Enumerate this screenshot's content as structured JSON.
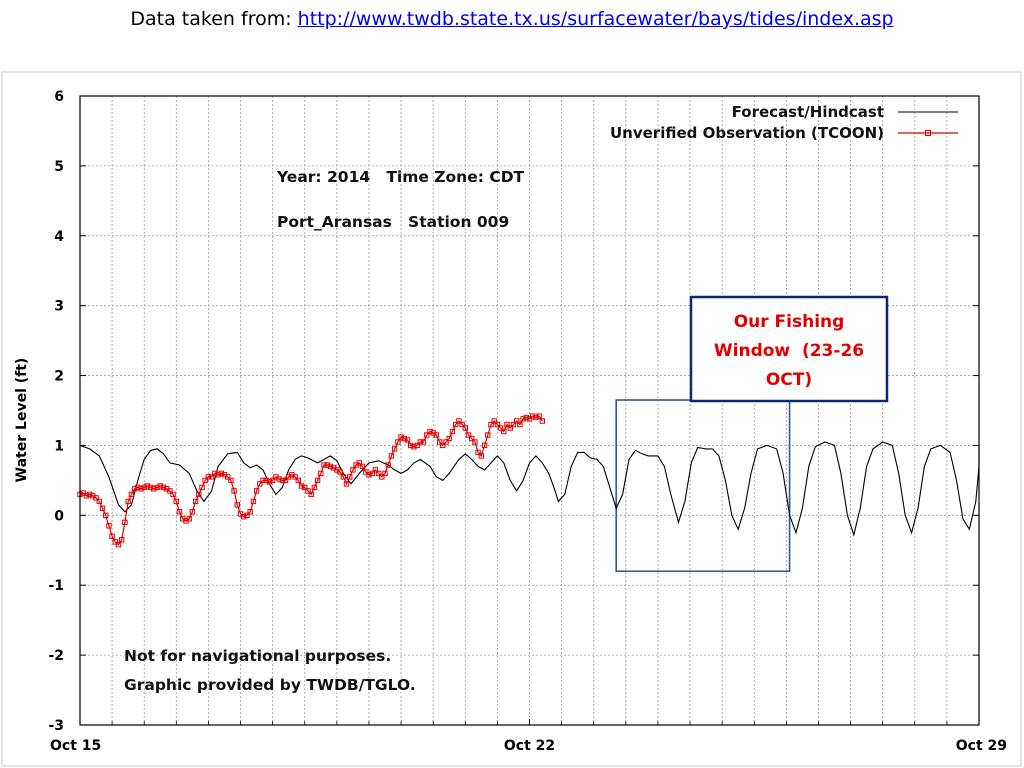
{
  "header": {
    "prefix": "Data taken from:",
    "link_text": "http://www.twdb.state.tx.us/surfacewater/bays/tides/index.asp"
  },
  "annotations": {
    "year_line": "Year: 2014   Time Zone: CDT",
    "station_line": "Port_Aransas   Station 009",
    "disclaimer_1": "Not for navigational purposes.",
    "disclaimer_2": "Graphic provided by TWDB/TGLO.",
    "window_line_1": "Our Fishing",
    "window_line_2": "Window  (23-26",
    "window_line_3": "OCT)"
  },
  "colors": {
    "forecast": "#000000",
    "observation": "#e00000",
    "window_box": "#0a2a6b",
    "window_extension": "#3a5a7a",
    "window_text": "#e00000"
  },
  "chart_data": {
    "type": "line",
    "title": "",
    "xlabel": "",
    "ylabel": "Water Level (ft)",
    "xlim": [
      15,
      29
    ],
    "ylim": [
      -3,
      6
    ],
    "grid": true,
    "legend_placement": "top-right",
    "x_ticks": [
      {
        "value": 15,
        "label": "Oct 15"
      },
      {
        "value": 22,
        "label": "Oct 22"
      },
      {
        "value": 29,
        "label": "Oct 29"
      }
    ],
    "y_ticks": [
      6,
      5,
      4,
      3,
      2,
      1,
      0,
      -1,
      -2,
      -3
    ],
    "series": [
      {
        "name": "Forecast/Hindcast",
        "style": "line",
        "points": [
          [
            15.0,
            1.0
          ],
          [
            15.15,
            0.95
          ],
          [
            15.3,
            0.85
          ],
          [
            15.45,
            0.55
          ],
          [
            15.6,
            0.15
          ],
          [
            15.7,
            0.05
          ],
          [
            15.8,
            0.15
          ],
          [
            15.9,
            0.5
          ],
          [
            16.0,
            0.8
          ],
          [
            16.1,
            0.93
          ],
          [
            16.2,
            0.95
          ],
          [
            16.3,
            0.88
          ],
          [
            16.4,
            0.75
          ],
          [
            16.55,
            0.72
          ],
          [
            16.7,
            0.6
          ],
          [
            16.82,
            0.35
          ],
          [
            16.93,
            0.2
          ],
          [
            17.05,
            0.35
          ],
          [
            17.15,
            0.7
          ],
          [
            17.3,
            0.88
          ],
          [
            17.45,
            0.9
          ],
          [
            17.55,
            0.75
          ],
          [
            17.65,
            0.68
          ],
          [
            17.75,
            0.72
          ],
          [
            17.85,
            0.65
          ],
          [
            17.95,
            0.45
          ],
          [
            18.05,
            0.3
          ],
          [
            18.15,
            0.4
          ],
          [
            18.25,
            0.65
          ],
          [
            18.35,
            0.8
          ],
          [
            18.45,
            0.85
          ],
          [
            18.55,
            0.82
          ],
          [
            18.7,
            0.75
          ],
          [
            18.8,
            0.8
          ],
          [
            18.9,
            0.85
          ],
          [
            19.0,
            0.78
          ],
          [
            19.1,
            0.6
          ],
          [
            19.22,
            0.45
          ],
          [
            19.35,
            0.6
          ],
          [
            19.5,
            0.75
          ],
          [
            19.65,
            0.78
          ],
          [
            19.8,
            0.72
          ],
          [
            19.9,
            0.65
          ],
          [
            20.0,
            0.6
          ],
          [
            20.1,
            0.65
          ],
          [
            20.2,
            0.75
          ],
          [
            20.3,
            0.8
          ],
          [
            20.45,
            0.7
          ],
          [
            20.55,
            0.55
          ],
          [
            20.65,
            0.5
          ],
          [
            20.75,
            0.6
          ],
          [
            20.9,
            0.8
          ],
          [
            21.0,
            0.88
          ],
          [
            21.1,
            0.8
          ],
          [
            21.2,
            0.7
          ],
          [
            21.3,
            0.65
          ],
          [
            21.4,
            0.75
          ],
          [
            21.5,
            0.85
          ],
          [
            21.6,
            0.75
          ],
          [
            21.7,
            0.5
          ],
          [
            21.8,
            0.35
          ],
          [
            21.9,
            0.5
          ],
          [
            22.0,
            0.75
          ],
          [
            22.1,
            0.85
          ],
          [
            22.2,
            0.75
          ],
          [
            22.3,
            0.6
          ],
          [
            22.38,
            0.4
          ],
          [
            22.45,
            0.2
          ],
          [
            22.55,
            0.3
          ],
          [
            22.65,
            0.7
          ],
          [
            22.75,
            0.9
          ],
          [
            22.85,
            0.9
          ],
          [
            22.95,
            0.82
          ],
          [
            23.05,
            0.8
          ],
          [
            23.15,
            0.7
          ],
          [
            23.25,
            0.4
          ],
          [
            23.35,
            0.1
          ],
          [
            23.45,
            0.3
          ],
          [
            23.55,
            0.8
          ],
          [
            23.65,
            0.93
          ],
          [
            23.75,
            0.88
          ],
          [
            23.85,
            0.85
          ],
          [
            24.0,
            0.85
          ],
          [
            24.1,
            0.7
          ],
          [
            24.2,
            0.3
          ],
          [
            24.32,
            -0.1
          ],
          [
            24.42,
            0.2
          ],
          [
            24.52,
            0.75
          ],
          [
            24.62,
            0.97
          ],
          [
            24.75,
            0.95
          ],
          [
            24.85,
            0.95
          ],
          [
            24.95,
            0.85
          ],
          [
            25.05,
            0.5
          ],
          [
            25.15,
            0.0
          ],
          [
            25.25,
            -0.2
          ],
          [
            25.35,
            0.1
          ],
          [
            25.45,
            0.6
          ],
          [
            25.55,
            0.95
          ],
          [
            25.7,
            1.0
          ],
          [
            25.85,
            0.95
          ],
          [
            25.95,
            0.6
          ],
          [
            26.05,
            0.0
          ],
          [
            26.15,
            -0.25
          ],
          [
            26.25,
            0.1
          ],
          [
            26.35,
            0.7
          ],
          [
            26.45,
            0.98
          ],
          [
            26.6,
            1.05
          ],
          [
            26.75,
            1.0
          ],
          [
            26.85,
            0.6
          ],
          [
            26.95,
            0.0
          ],
          [
            27.05,
            -0.28
          ],
          [
            27.15,
            0.1
          ],
          [
            27.25,
            0.7
          ],
          [
            27.35,
            0.95
          ],
          [
            27.5,
            1.05
          ],
          [
            27.65,
            1.0
          ],
          [
            27.75,
            0.6
          ],
          [
            27.85,
            0.0
          ],
          [
            27.95,
            -0.25
          ],
          [
            28.05,
            0.1
          ],
          [
            28.15,
            0.7
          ],
          [
            28.25,
            0.95
          ],
          [
            28.4,
            1.0
          ],
          [
            28.55,
            0.9
          ],
          [
            28.65,
            0.5
          ],
          [
            28.75,
            -0.05
          ],
          [
            28.85,
            -0.2
          ],
          [
            28.95,
            0.2
          ],
          [
            29.05,
            0.7
          ],
          [
            29.15,
            0.95
          ],
          [
            29.3,
            1.0
          ]
        ]
      },
      {
        "name": "Unverified Observation (TCOON)",
        "style": "line-marker",
        "points": [
          [
            15.0,
            0.3
          ],
          [
            15.05,
            0.32
          ],
          [
            15.1,
            0.28
          ],
          [
            15.15,
            0.3
          ],
          [
            15.2,
            0.28
          ],
          [
            15.25,
            0.25
          ],
          [
            15.3,
            0.2
          ],
          [
            15.35,
            0.1
          ],
          [
            15.4,
            0.0
          ],
          [
            15.45,
            -0.15
          ],
          [
            15.5,
            -0.3
          ],
          [
            15.55,
            -0.38
          ],
          [
            15.6,
            -0.42
          ],
          [
            15.65,
            -0.35
          ],
          [
            15.7,
            -0.1
          ],
          [
            15.75,
            0.2
          ],
          [
            15.8,
            0.3
          ],
          [
            15.85,
            0.38
          ],
          [
            15.9,
            0.4
          ],
          [
            15.95,
            0.38
          ],
          [
            16.0,
            0.4
          ],
          [
            16.05,
            0.42
          ],
          [
            16.1,
            0.4
          ],
          [
            16.15,
            0.38
          ],
          [
            16.2,
            0.4
          ],
          [
            16.25,
            0.42
          ],
          [
            16.3,
            0.4
          ],
          [
            16.35,
            0.38
          ],
          [
            16.4,
            0.35
          ],
          [
            16.45,
            0.3
          ],
          [
            16.5,
            0.2
          ],
          [
            16.55,
            0.05
          ],
          [
            16.6,
            -0.05
          ],
          [
            16.65,
            -0.08
          ],
          [
            16.7,
            -0.05
          ],
          [
            16.75,
            0.05
          ],
          [
            16.8,
            0.2
          ],
          [
            16.85,
            0.3
          ],
          [
            16.9,
            0.4
          ],
          [
            16.95,
            0.5
          ],
          [
            17.0,
            0.55
          ],
          [
            17.05,
            0.55
          ],
          [
            17.1,
            0.6
          ],
          [
            17.15,
            0.58
          ],
          [
            17.2,
            0.6
          ],
          [
            17.25,
            0.58
          ],
          [
            17.3,
            0.55
          ],
          [
            17.35,
            0.5
          ],
          [
            17.4,
            0.35
          ],
          [
            17.45,
            0.15
          ],
          [
            17.5,
            0.02
          ],
          [
            17.55,
            -0.02
          ],
          [
            17.6,
            0.0
          ],
          [
            17.65,
            0.05
          ],
          [
            17.7,
            0.2
          ],
          [
            17.75,
            0.35
          ],
          [
            17.8,
            0.45
          ],
          [
            17.85,
            0.5
          ],
          [
            17.9,
            0.5
          ],
          [
            17.95,
            0.48
          ],
          [
            18.0,
            0.5
          ],
          [
            18.05,
            0.55
          ],
          [
            18.1,
            0.52
          ],
          [
            18.15,
            0.5
          ],
          [
            18.2,
            0.5
          ],
          [
            18.25,
            0.55
          ],
          [
            18.3,
            0.58
          ],
          [
            18.35,
            0.55
          ],
          [
            18.4,
            0.5
          ],
          [
            18.45,
            0.42
          ],
          [
            18.5,
            0.4
          ],
          [
            18.55,
            0.35
          ],
          [
            18.6,
            0.3
          ],
          [
            18.65,
            0.4
          ],
          [
            18.7,
            0.5
          ],
          [
            18.75,
            0.6
          ],
          [
            18.8,
            0.72
          ],
          [
            18.85,
            0.72
          ],
          [
            18.9,
            0.7
          ],
          [
            18.95,
            0.68
          ],
          [
            19.0,
            0.65
          ],
          [
            19.05,
            0.62
          ],
          [
            19.1,
            0.55
          ],
          [
            19.15,
            0.45
          ],
          [
            19.2,
            0.55
          ],
          [
            19.25,
            0.65
          ],
          [
            19.3,
            0.72
          ],
          [
            19.35,
            0.75
          ],
          [
            19.4,
            0.7
          ],
          [
            19.45,
            0.62
          ],
          [
            19.5,
            0.58
          ],
          [
            19.55,
            0.6
          ],
          [
            19.6,
            0.65
          ],
          [
            19.65,
            0.6
          ],
          [
            19.7,
            0.55
          ],
          [
            19.75,
            0.6
          ],
          [
            19.8,
            0.72
          ],
          [
            19.85,
            0.85
          ],
          [
            19.9,
            0.95
          ],
          [
            19.95,
            1.05
          ],
          [
            20.0,
            1.12
          ],
          [
            20.05,
            1.1
          ],
          [
            20.1,
            1.08
          ],
          [
            20.15,
            1.0
          ],
          [
            20.2,
            0.98
          ],
          [
            20.25,
            1.0
          ],
          [
            20.3,
            1.05
          ],
          [
            20.35,
            1.05
          ],
          [
            20.4,
            1.15
          ],
          [
            20.45,
            1.2
          ],
          [
            20.5,
            1.18
          ],
          [
            20.55,
            1.15
          ],
          [
            20.6,
            1.05
          ],
          [
            20.65,
            1.0
          ],
          [
            20.7,
            1.05
          ],
          [
            20.75,
            1.1
          ],
          [
            20.8,
            1.2
          ],
          [
            20.85,
            1.3
          ],
          [
            20.9,
            1.35
          ],
          [
            20.95,
            1.3
          ],
          [
            21.0,
            1.25
          ],
          [
            21.05,
            1.15
          ],
          [
            21.1,
            1.1
          ],
          [
            21.15,
            1.05
          ],
          [
            21.2,
            0.9
          ],
          [
            21.25,
            0.85
          ],
          [
            21.3,
            1.0
          ],
          [
            21.35,
            1.15
          ],
          [
            21.4,
            1.3
          ],
          [
            21.45,
            1.35
          ],
          [
            21.5,
            1.3
          ],
          [
            21.55,
            1.25
          ],
          [
            21.6,
            1.2
          ],
          [
            21.65,
            1.3
          ],
          [
            21.7,
            1.25
          ],
          [
            21.75,
            1.3
          ],
          [
            21.8,
            1.35
          ],
          [
            21.85,
            1.3
          ],
          [
            21.9,
            1.38
          ],
          [
            21.95,
            1.4
          ],
          [
            22.0,
            1.38
          ],
          [
            22.05,
            1.42
          ],
          [
            22.1,
            1.4
          ],
          [
            22.15,
            1.42
          ],
          [
            22.2,
            1.35
          ]
        ]
      }
    ],
    "shaded_window": {
      "x_start": 23.35,
      "x_end": 26.05,
      "y_min": -0.8,
      "y_max": 1.65
    }
  }
}
